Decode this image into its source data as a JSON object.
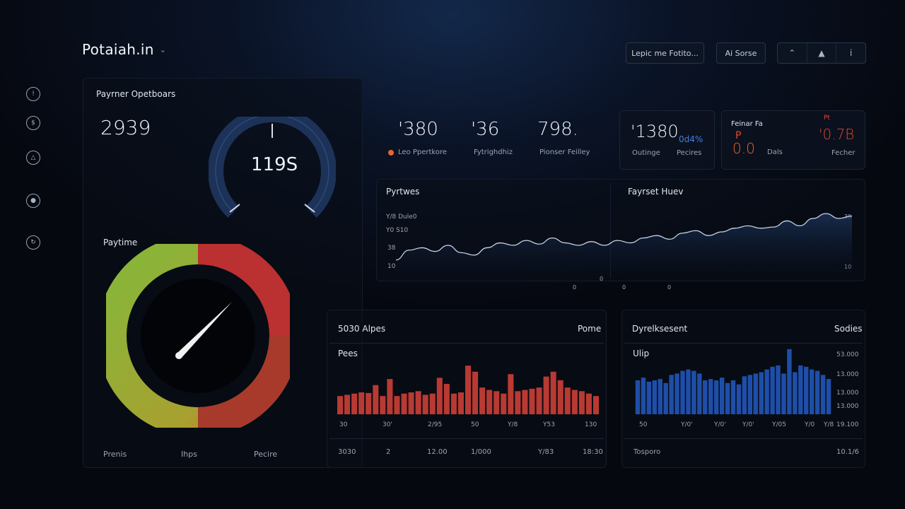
{
  "header": {
    "logo": "Potaiah.in",
    "buttons": [
      "Lepic me Fotito...",
      "Ai Sorse"
    ],
    "icon_bar": [
      "arrow-up-icon",
      "bell-icon",
      "info-icon"
    ]
  },
  "sidebar": {
    "icons": [
      "alert-icon",
      "dollar-icon",
      "warning-icon",
      "user-icon",
      "settings-icon"
    ]
  },
  "left_panel": {
    "title": "Payrner Opetboars",
    "main_value": "2939",
    "small_gauge_value": "119S",
    "gauge_title": "Paytime",
    "gauge_fill_fraction": 0.62,
    "footer_labels": [
      "Prenis",
      "Ihps",
      "Pecire"
    ],
    "colors": {
      "green": "#7db23a",
      "red": "#bb3030",
      "amber": "#c8902a"
    }
  },
  "kpis": [
    {
      "value": "'380",
      "label": "Leo Ppertkore",
      "dot": true
    },
    {
      "value": "'36",
      "label": "Fytrighdhiz"
    },
    {
      "value": "798.",
      "label": "Pionser Feilley"
    }
  ],
  "kpi_card_1": {
    "value": "'1380",
    "sub_value": "0d4%",
    "label_left": "Outinge",
    "label_right": "Pecires"
  },
  "kpi_card_2": {
    "title": "Feinar Fa",
    "value_left": "0.0",
    "value_left_top": "P",
    "value_left_label": "Dals",
    "value_right_top": "Pt",
    "value_right": "'0.7B",
    "label_right": "Fecher"
  },
  "line_panel": {
    "title_left": "Pyrtwes",
    "title_right": "Fayrset Huev",
    "y_ticks_left": [
      "Y/8 Dule0",
      "Y0 S10",
      "38",
      "10"
    ],
    "y_ticks_right": [
      "30",
      "10"
    ],
    "x_ticks": [
      "0",
      "0",
      "0",
      "0"
    ],
    "accent": "#c7d3e6"
  },
  "bar_panel_red": {
    "title": "5030 Alpes",
    "right_title": "Pome",
    "sub_title": "Pees",
    "x_ticks": [
      "30",
      "30'",
      "2/95",
      "50",
      "Y/8",
      "Y53",
      "130"
    ],
    "footer": [
      "3030",
      "2",
      "12.00",
      "1/000",
      "Y/83",
      "18:30"
    ],
    "color": "#b93a33"
  },
  "bar_panel_blue": {
    "title": "Dyrelksesent",
    "right_title": "Sodies",
    "sub_title": "Ulip",
    "y_ticks": [
      "53.000",
      "13.000",
      "13.000",
      "13.000"
    ],
    "x_ticks": [
      "50",
      "Y/0'",
      "Y/0'",
      "Y/0'",
      "Y/05",
      "Y/0",
      "Y/8"
    ],
    "right_bottom_tick": "19.100",
    "footer_left": "Tosporo",
    "footer_right": "10.1/6",
    "color": "#1e4ea8"
  },
  "chart_data": [
    {
      "type": "line",
      "title": "Pyrtwes",
      "x": [
        0,
        1,
        2,
        3,
        4,
        5,
        6,
        7,
        8,
        9,
        10,
        11,
        12,
        13,
        14,
        15,
        16,
        17,
        18,
        19,
        20,
        21,
        22,
        23,
        24,
        25,
        26,
        27,
        28,
        29,
        30,
        31,
        32,
        33,
        34,
        35
      ],
      "values": [
        10,
        18,
        20,
        17,
        22,
        16,
        14,
        20,
        24,
        22,
        26,
        23,
        28,
        24,
        22,
        25,
        22,
        26,
        24,
        28,
        30,
        27,
        32,
        34,
        30,
        33,
        36,
        38,
        36,
        37,
        42,
        38,
        44,
        48,
        44,
        46
      ],
      "ylim": [
        0,
        55
      ]
    },
    {
      "type": "bar",
      "title": "5030 Alpes",
      "values": [
        30,
        32,
        34,
        36,
        35,
        48,
        30,
        58,
        30,
        34,
        36,
        38,
        32,
        34,
        60,
        50,
        34,
        36,
        80,
        70,
        44,
        40,
        38,
        34,
        66,
        38,
        40,
        42,
        44,
        62,
        70,
        56,
        44,
        40,
        38,
        34,
        30
      ],
      "ylim": [
        0,
        100
      ]
    },
    {
      "type": "bar",
      "title": "Dyrelksesent",
      "values": [
        50,
        54,
        48,
        50,
        52,
        46,
        58,
        60,
        64,
        66,
        64,
        60,
        50,
        52,
        50,
        54,
        46,
        50,
        44,
        56,
        58,
        60,
        62,
        66,
        70,
        72,
        60,
        96,
        62,
        72,
        70,
        66,
        64,
        58,
        52
      ],
      "ylim": [
        0,
        100
      ]
    }
  ]
}
